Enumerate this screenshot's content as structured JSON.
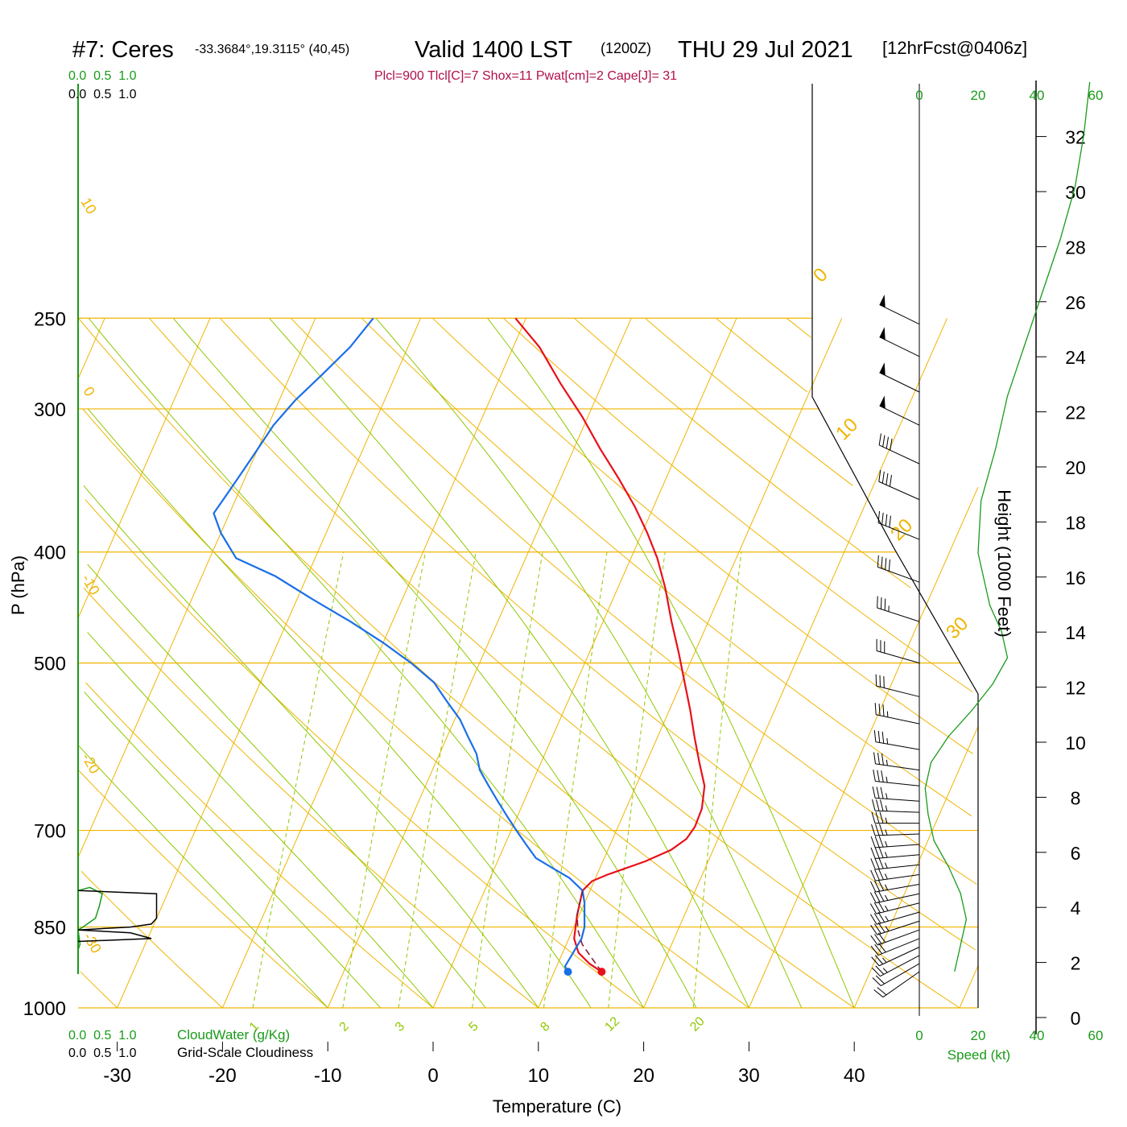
{
  "header": {
    "station": "#7: Ceres",
    "coords": "-33.3684°,19.3115° (40,45)",
    "valid": "Valid 1400 LST",
    "zulu": "(1200Z)",
    "date": "THU 29 Jul 2021",
    "forecast": "[12hrFcst@0406z]",
    "indices": "Plcl=900 Tlcl[C]=7 Shox=11 Pwat[cm]=2 Cape[J]= 31"
  },
  "labels": {
    "y_axis": "P (hPa)",
    "x_axis": "Temperature (C)",
    "height_axis": "Height (1000 Feet)",
    "speed_axis": "Speed (kt)",
    "cloudwater": "CloudWater (g/Kg)",
    "cloudiness": "Grid-Scale Cloudiness",
    "scale_top_green": "0.0  0.5  1.0",
    "scale_top_black": "0.0  0.5  1.0"
  },
  "colors": {
    "temperature": "#e8101a",
    "dewpoint": "#1a6fe8",
    "parcel": "#8b1a3a",
    "isobar": "#f0b400",
    "dry_adiabat": "#8fc800",
    "mixing_ratio": "#8fc800",
    "cloudwater": "#1a9a1a",
    "title_indices": "#b0104a"
  },
  "chart_data": {
    "type": "line",
    "pressure_ticks": [
      250,
      300,
      400,
      500,
      700,
      850,
      1000
    ],
    "temperature_ticks": [
      -30,
      -20,
      -10,
      0,
      10,
      20,
      30,
      40
    ],
    "isotherm_labels": [
      "10",
      "0",
      "-10",
      "-20",
      "-30",
      "0",
      "10",
      "20",
      "30"
    ],
    "mixing_ratio_labels": [
      "1",
      "2",
      "3",
      "5",
      "8",
      "12",
      "20"
    ],
    "height_ticks_kft": [
      0,
      2,
      4,
      6,
      8,
      10,
      12,
      14,
      16,
      18,
      20,
      22,
      24,
      26,
      28,
      30,
      32
    ],
    "speed_ticks": [
      "0",
      "20",
      "40",
      "60"
    ],
    "series": [
      {
        "name": "Temperature",
        "points": [
          [
            14.5,
            930
          ],
          [
            13,
            915
          ],
          [
            11.5,
            895
          ],
          [
            10.5,
            870
          ],
          [
            9.8,
            830
          ],
          [
            9.3,
            790
          ],
          [
            9.8,
            775
          ],
          [
            11,
            765
          ],
          [
            14,
            745
          ],
          [
            16,
            728
          ],
          [
            17,
            712
          ],
          [
            17.3,
            695
          ],
          [
            17.2,
            670
          ],
          [
            16.5,
            640
          ],
          [
            15,
            610
          ],
          [
            13.5,
            580
          ],
          [
            12,
            550
          ],
          [
            10.3,
            520
          ],
          [
            8.5,
            490
          ],
          [
            6.5,
            460
          ],
          [
            4.5,
            430
          ],
          [
            2.5,
            405
          ],
          [
            0.5,
            385
          ],
          [
            -1.8,
            365
          ],
          [
            -4.5,
            345
          ],
          [
            -7.5,
            325
          ],
          [
            -10.5,
            305
          ],
          [
            -14,
            285
          ],
          [
            -17.5,
            265
          ],
          [
            -21,
            250
          ]
        ]
      },
      {
        "name": "Dewpoint",
        "points": [
          [
            11.3,
            930
          ],
          [
            10.8,
            920
          ],
          [
            11,
            895
          ],
          [
            11.2,
            870
          ],
          [
            11,
            850
          ],
          [
            10.5,
            830
          ],
          [
            10,
            810
          ],
          [
            9.3,
            790
          ],
          [
            7.5,
            770
          ],
          [
            5.5,
            755
          ],
          [
            3.5,
            740
          ],
          [
            2,
            720
          ],
          [
            0.5,
            700
          ],
          [
            -1,
            680
          ],
          [
            -2.5,
            660
          ],
          [
            -4,
            640
          ],
          [
            -5.5,
            620
          ],
          [
            -6.5,
            600
          ],
          [
            -8,
            580
          ],
          [
            -9.5,
            560
          ],
          [
            -11.5,
            540
          ],
          [
            -13.5,
            520
          ],
          [
            -16.5,
            500
          ],
          [
            -20,
            480
          ],
          [
            -24,
            460
          ],
          [
            -28.5,
            440
          ],
          [
            -33,
            420
          ],
          [
            -37.5,
            405
          ],
          [
            -40,
            385
          ],
          [
            -41.5,
            370
          ],
          [
            -41,
            355
          ],
          [
            -40.5,
            340
          ],
          [
            -40,
            325
          ],
          [
            -39.5,
            310
          ],
          [
            -38.5,
            295
          ],
          [
            -37,
            280
          ],
          [
            -35.5,
            265
          ],
          [
            -34.5,
            250
          ]
        ]
      },
      {
        "name": "Parcel",
        "points": [
          [
            14.5,
            930
          ],
          [
            13,
            905
          ],
          [
            11.5,
            880
          ],
          [
            10.5,
            855
          ],
          [
            9.8,
            830
          ],
          [
            9.3,
            790
          ]
        ]
      }
    ],
    "surface_temperature": 14.5,
    "surface_dewpoint": 11.3,
    "surface_pressure": 930,
    "cloudwater_profile": [
      [
        0,
        790
      ],
      [
        0.12,
        785
      ],
      [
        0.25,
        795
      ],
      [
        0.22,
        815
      ],
      [
        0.18,
        835
      ],
      [
        0.05,
        850
      ],
      [
        0,
        855
      ],
      [
        0.02,
        880
      ],
      [
        0,
        890
      ]
    ],
    "cloudiness_profile": [
      [
        0,
        790
      ],
      [
        0.75,
        795
      ],
      [
        0.75,
        835
      ],
      [
        0.7,
        845
      ],
      [
        0.5,
        850
      ],
      [
        0,
        855
      ],
      [
        0.5,
        860
      ],
      [
        0.7,
        870
      ],
      [
        0,
        875
      ]
    ],
    "height_profile": [
      [
        12,
        0
      ],
      [
        14,
        1
      ],
      [
        16,
        2
      ],
      [
        14,
        3
      ],
      [
        10,
        4
      ],
      [
        5,
        5
      ],
      [
        3,
        6
      ],
      [
        2,
        7
      ],
      [
        4,
        8
      ],
      [
        10,
        9
      ],
      [
        18,
        10
      ],
      [
        25,
        11
      ],
      [
        30,
        12
      ],
      [
        28,
        13
      ],
      [
        24,
        14
      ],
      [
        20,
        16
      ],
      [
        21,
        18
      ],
      [
        26,
        20
      ],
      [
        30,
        22
      ],
      [
        36,
        24
      ],
      [
        42,
        26
      ],
      [
        48,
        28
      ],
      [
        53,
        30
      ],
      [
        56,
        32
      ],
      [
        58,
        34
      ]
    ],
    "wind_barbs": [
      {
        "p": 930,
        "speed": 20,
        "dir": 305
      },
      {
        "p": 915,
        "speed": 20,
        "dir": 300
      },
      {
        "p": 900,
        "speed": 25,
        "dir": 298
      },
      {
        "p": 885,
        "speed": 25,
        "dir": 295
      },
      {
        "p": 870,
        "speed": 30,
        "dir": 292
      },
      {
        "p": 855,
        "speed": 30,
        "dir": 290
      },
      {
        "p": 840,
        "speed": 35,
        "dir": 288
      },
      {
        "p": 825,
        "speed": 35,
        "dir": 286
      },
      {
        "p": 810,
        "speed": 35,
        "dir": 284
      },
      {
        "p": 795,
        "speed": 35,
        "dir": 282
      },
      {
        "p": 780,
        "speed": 35,
        "dir": 280
      },
      {
        "p": 765,
        "speed": 35,
        "dir": 278
      },
      {
        "p": 750,
        "speed": 35,
        "dir": 276
      },
      {
        "p": 735,
        "speed": 35,
        "dir": 275
      },
      {
        "p": 720,
        "speed": 35,
        "dir": 274
      },
      {
        "p": 705,
        "speed": 35,
        "dir": 272
      },
      {
        "p": 690,
        "speed": 35,
        "dir": 270
      },
      {
        "p": 675,
        "speed": 35,
        "dir": 268
      },
      {
        "p": 660,
        "speed": 35,
        "dir": 266
      },
      {
        "p": 640,
        "speed": 35,
        "dir": 264
      },
      {
        "p": 620,
        "speed": 35,
        "dir": 262
      },
      {
        "p": 595,
        "speed": 35,
        "dir": 260
      },
      {
        "p": 565,
        "speed": 35,
        "dir": 258
      },
      {
        "p": 535,
        "speed": 30,
        "dir": 256
      },
      {
        "p": 500,
        "speed": 30,
        "dir": 254
      },
      {
        "p": 460,
        "speed": 35,
        "dir": 252
      },
      {
        "p": 425,
        "speed": 40,
        "dir": 250
      },
      {
        "p": 390,
        "speed": 40,
        "dir": 248
      },
      {
        "p": 360,
        "speed": 40,
        "dir": 246
      },
      {
        "p": 335,
        "speed": 40,
        "dir": 245
      },
      {
        "p": 310,
        "speed": 50,
        "dir": 244
      },
      {
        "p": 290,
        "speed": 50,
        "dir": 244
      },
      {
        "p": 270,
        "speed": 50,
        "dir": 244
      },
      {
        "p": 253,
        "speed": 50,
        "dir": 244
      }
    ]
  }
}
